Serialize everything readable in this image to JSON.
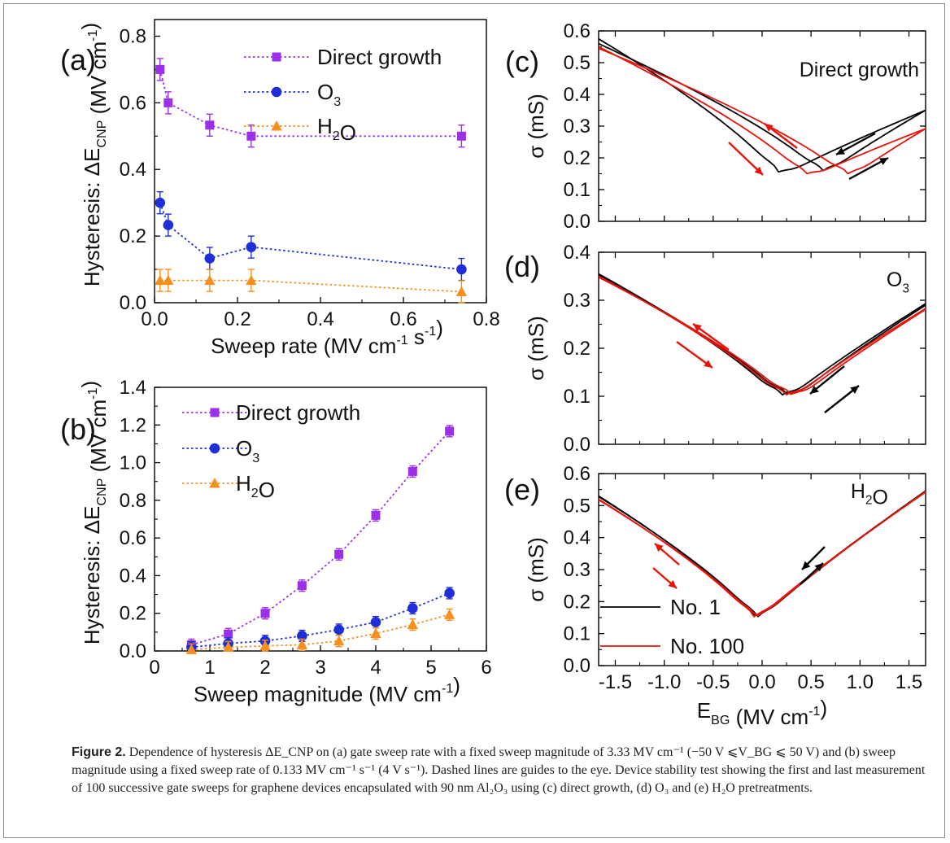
{
  "caption": {
    "label": "Figure 2.",
    "text": "Dependence of hysteresis ΔE_CNP on (a) gate sweep rate with a fixed sweep magnitude of 3.33 MV cm⁻¹ (−50 V ⩽V_BG ⩽ 50 V) and (b) sweep magnitude using a fixed sweep rate of 0.133 MV cm⁻¹ s⁻¹ (4 V s⁻¹). Dashed lines are guides to the eye. Device stability test showing the first and last measurement of 100 successive gate sweeps for graphene devices encapsulated with 90 nm Al₂O₃ using (c) direct growth, (d) O₃ and (e) H₂O pretreatments."
  },
  "colors": {
    "direct": "#9b30e8",
    "o3": "#1f2fd8",
    "h2o": "#f5901e",
    "no1": "#000000",
    "no100": "#e8140c"
  },
  "chart_data": [
    {
      "panel": "(a)",
      "type": "scatter",
      "xlabel": "Sweep rate  (MV cm⁻¹ s⁻¹)",
      "ylabel": "Hysteresis: ΔE_CNP (MV cm⁻¹)",
      "xlim": [
        0,
        0.8
      ],
      "ylim": [
        0,
        0.85
      ],
      "xticks": [
        "0.0",
        "0.2",
        "0.4",
        "0.6",
        "0.8"
      ],
      "yticks": [
        "0.0",
        "0.2",
        "0.4",
        "0.6",
        "0.8"
      ],
      "series": [
        {
          "name": "Direct growth",
          "marker": "square",
          "x": [
            0.0133,
            0.033,
            0.133,
            0.233,
            0.74
          ],
          "y": [
            0.7,
            0.6,
            0.533,
            0.5,
            0.5
          ],
          "err": [
            0.033,
            0.033,
            0.033,
            0.033,
            0.033
          ]
        },
        {
          "name": "O3",
          "marker": "circle",
          "x": [
            0.0133,
            0.033,
            0.133,
            0.233,
            0.74
          ],
          "y": [
            0.3,
            0.233,
            0.133,
            0.167,
            0.1
          ],
          "err": [
            0.033,
            0.033,
            0.033,
            0.033,
            0.033
          ]
        },
        {
          "name": "H2O",
          "marker": "triangle",
          "x": [
            0.0133,
            0.033,
            0.133,
            0.233,
            0.74
          ],
          "y": [
            0.067,
            0.067,
            0.067,
            0.067,
            0.033
          ],
          "err": [
            0.033,
            0.033,
            0.033,
            0.033,
            0.033
          ]
        }
      ]
    },
    {
      "panel": "(b)",
      "type": "scatter",
      "xlabel": "Sweep magnitude (MV cm⁻¹)",
      "ylabel": "Hysteresis: ΔE_CNP (MV cm⁻¹)",
      "xlim": [
        0,
        6
      ],
      "ylim": [
        0,
        1.4
      ],
      "xticks": [
        "0",
        "1",
        "2",
        "3",
        "4",
        "5",
        "6"
      ],
      "yticks": [
        "0.0",
        "0.2",
        "0.4",
        "0.6",
        "0.8",
        "1.0",
        "1.2",
        "1.4"
      ],
      "series": [
        {
          "name": "Direct growth",
          "marker": "square",
          "x": [
            0.667,
            1.333,
            2.0,
            2.667,
            3.333,
            4.0,
            4.667,
            5.333
          ],
          "y": [
            0.033,
            0.09,
            0.2,
            0.347,
            0.513,
            0.72,
            0.953,
            1.167
          ],
          "err": [
            0.03,
            0.03,
            0.03,
            0.03,
            0.03,
            0.03,
            0.03,
            0.03
          ]
        },
        {
          "name": "O3",
          "marker": "circle",
          "x": [
            0.667,
            1.333,
            2.0,
            2.667,
            3.333,
            4.0,
            4.667,
            5.333
          ],
          "y": [
            0.02,
            0.04,
            0.053,
            0.08,
            0.113,
            0.153,
            0.227,
            0.307
          ],
          "err": [
            0.03,
            0.03,
            0.03,
            0.03,
            0.03,
            0.03,
            0.03,
            0.03
          ]
        },
        {
          "name": "H2O",
          "marker": "triangle",
          "x": [
            0.667,
            1.333,
            2.0,
            2.667,
            3.333,
            4.0,
            4.667,
            5.333
          ],
          "y": [
            0.007,
            0.02,
            0.027,
            0.033,
            0.053,
            0.093,
            0.14,
            0.193
          ],
          "err": [
            0.03,
            0.03,
            0.03,
            0.03,
            0.03,
            0.03,
            0.03,
            0.03
          ]
        }
      ]
    },
    {
      "panel": "(c)",
      "type": "line",
      "annotation": "Direct growth",
      "ylabel": "σ (mS)",
      "xlim": [
        -1.67,
        1.67
      ],
      "ylim": [
        0,
        0.6
      ],
      "yticks": [
        "0.0",
        "0.1",
        "0.2",
        "0.3",
        "0.4",
        "0.5",
        "0.6"
      ],
      "curves": [
        {
          "name": "No. 1",
          "v": 0.17,
          "min": 0.135,
          "l": 0.575,
          "r": 0.35
        },
        {
          "name": "No. 1",
          "v": 0.62,
          "min": 0.14,
          "l": 0.56,
          "r": 0.35
        },
        {
          "name": "No. 100",
          "v": 0.45,
          "min": 0.13,
          "l": 0.55,
          "r": 0.292
        },
        {
          "name": "No. 100",
          "v": 0.88,
          "min": 0.13,
          "l": 0.545,
          "r": 0.292
        }
      ]
    },
    {
      "panel": "(d)",
      "type": "line",
      "annotation": "O3",
      "ylabel": "σ (mS)",
      "xlim": [
        -1.67,
        1.67
      ],
      "ylim": [
        0,
        0.4
      ],
      "yticks": [
        "0.0",
        "0.1",
        "0.2",
        "0.3",
        "0.4"
      ],
      "curves": [
        {
          "name": "No. 1",
          "v": 0.2,
          "min": 0.083,
          "l": 0.355,
          "r": 0.293
        },
        {
          "name": "No. 1",
          "v": 0.26,
          "min": 0.083,
          "l": 0.352,
          "r": 0.29
        },
        {
          "name": "No. 100",
          "v": 0.24,
          "min": 0.083,
          "l": 0.35,
          "r": 0.283
        },
        {
          "name": "No. 100",
          "v": 0.3,
          "min": 0.083,
          "l": 0.348,
          "r": 0.281
        }
      ]
    },
    {
      "panel": "(e)",
      "type": "line",
      "annotation": "H2O",
      "ylabel": "σ (mS)",
      "xlabel": "E_BG (MV cm⁻¹)",
      "xlim": [
        -1.67,
        1.67
      ],
      "ylim": [
        0,
        0.6
      ],
      "xticks": [
        "-1.5",
        "-1.0",
        "-0.5",
        "0.0",
        "0.5",
        "1.0",
        "1.5"
      ],
      "yticks": [
        "0.0",
        "0.1",
        "0.2",
        "0.3",
        "0.4",
        "0.5",
        "0.6"
      ],
      "legend": [
        "No. 1",
        "No. 100"
      ],
      "curves": [
        {
          "name": "No. 1",
          "v": -0.07,
          "min": 0.132,
          "l": 0.53,
          "r": 0.545
        },
        {
          "name": "No. 1",
          "v": -0.05,
          "min": 0.132,
          "l": 0.528,
          "r": 0.546
        },
        {
          "name": "No. 100",
          "v": -0.08,
          "min": 0.132,
          "l": 0.52,
          "r": 0.542
        },
        {
          "name": "No. 100",
          "v": -0.06,
          "min": 0.132,
          "l": 0.518,
          "r": 0.544
        }
      ]
    }
  ]
}
